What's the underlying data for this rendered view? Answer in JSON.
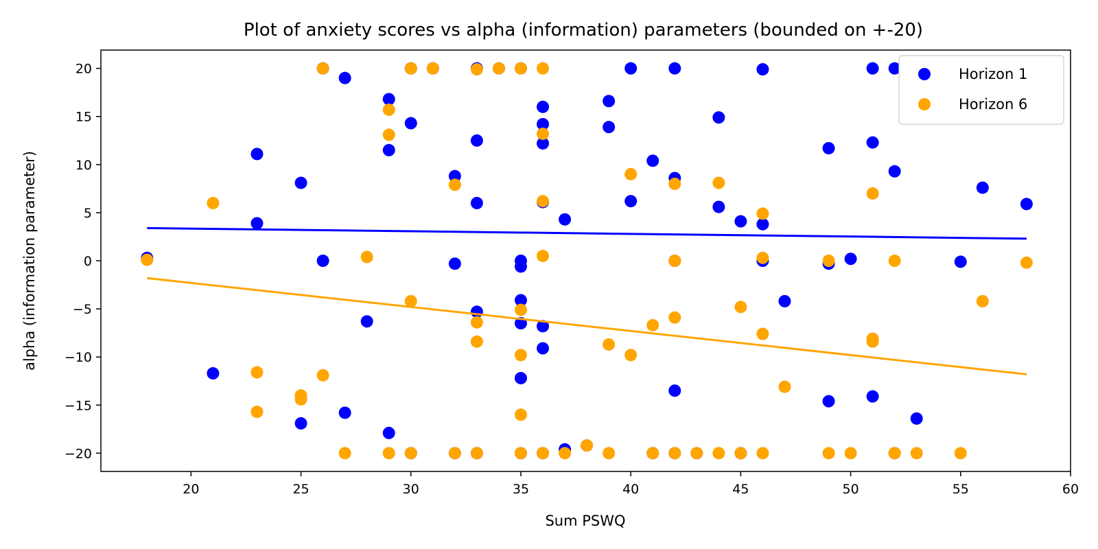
{
  "chart_data": {
    "type": "scatter",
    "title": "Plot of anxiety scores vs alpha (information) parameters (bounded on +-20)",
    "xlabel": "Sum PSWQ",
    "ylabel": "alpha (information parameter)",
    "xlim": [
      15.9,
      60
    ],
    "ylim": [
      -21.9,
      21.9
    ],
    "xticks": [
      20,
      25,
      30,
      35,
      40,
      45,
      50,
      55,
      60
    ],
    "yticks": [
      -20,
      -15,
      -10,
      -5,
      0,
      5,
      10,
      15,
      20
    ],
    "grid": false,
    "legend_position": "top-right",
    "series": [
      {
        "name": "Horizon 1",
        "color": "#0000ff",
        "points": [
          [
            18,
            0.3
          ],
          [
            21,
            -11.7
          ],
          [
            23,
            11.1
          ],
          [
            23,
            3.9
          ],
          [
            25,
            8.1
          ],
          [
            25,
            -16.9
          ],
          [
            26,
            20
          ],
          [
            26,
            0
          ],
          [
            27,
            19
          ],
          [
            27,
            -15.8
          ],
          [
            28,
            -6.3
          ],
          [
            29,
            16.8
          ],
          [
            29,
            11.5
          ],
          [
            29,
            -17.9
          ],
          [
            30,
            14.3
          ],
          [
            30,
            20
          ],
          [
            30,
            -20
          ],
          [
            31,
            20
          ],
          [
            32,
            8.8
          ],
          [
            32,
            -0.3
          ],
          [
            32,
            -20
          ],
          [
            33,
            20
          ],
          [
            33,
            12.5
          ],
          [
            33,
            6
          ],
          [
            33,
            -5.3
          ],
          [
            33,
            -20
          ],
          [
            34,
            20
          ],
          [
            35,
            20
          ],
          [
            35,
            0
          ],
          [
            35,
            -0.6
          ],
          [
            35,
            -4.1
          ],
          [
            35,
            -6.5
          ],
          [
            35,
            -12.2
          ],
          [
            35,
            -20
          ],
          [
            36,
            16
          ],
          [
            36,
            14.2
          ],
          [
            36,
            12.2
          ],
          [
            36,
            6.1
          ],
          [
            36,
            -6.8
          ],
          [
            36,
            -9.1
          ],
          [
            36,
            -20
          ],
          [
            37,
            4.3
          ],
          [
            37,
            -19.6
          ],
          [
            38,
            -19.2
          ],
          [
            39,
            16.6
          ],
          [
            39,
            13.9
          ],
          [
            40,
            20
          ],
          [
            40,
            6.2
          ],
          [
            41,
            10.4
          ],
          [
            41,
            -20
          ],
          [
            42,
            20
          ],
          [
            42,
            8.6
          ],
          [
            42,
            0
          ],
          [
            42,
            -13.5
          ],
          [
            42,
            -20
          ],
          [
            43,
            -20
          ],
          [
            44,
            14.9
          ],
          [
            44,
            5.6
          ],
          [
            45,
            4.1
          ],
          [
            45,
            -20
          ],
          [
            46,
            19.9
          ],
          [
            46,
            3.8
          ],
          [
            46,
            0
          ],
          [
            47,
            -4.2
          ],
          [
            49,
            11.7
          ],
          [
            49,
            -0.3
          ],
          [
            49,
            -14.6
          ],
          [
            50,
            0.2
          ],
          [
            51,
            20
          ],
          [
            51,
            12.3
          ],
          [
            51,
            -14.1
          ],
          [
            52,
            20
          ],
          [
            52,
            9.3
          ],
          [
            52,
            -20
          ],
          [
            53,
            -16.4
          ],
          [
            55,
            -0.1
          ],
          [
            56,
            7.6
          ],
          [
            58,
            5.9
          ]
        ],
        "trendline": {
          "x": [
            18,
            58
          ],
          "y": [
            3.4,
            2.3
          ]
        }
      },
      {
        "name": "Horizon 6",
        "color": "#ffa500",
        "points": [
          [
            18,
            0.1
          ],
          [
            21,
            6
          ],
          [
            23,
            -11.6
          ],
          [
            23,
            -15.7
          ],
          [
            25,
            -14.0
          ],
          [
            25,
            -14.4
          ],
          [
            26,
            20
          ],
          [
            26,
            -11.9
          ],
          [
            27,
            -20
          ],
          [
            28,
            0.4
          ],
          [
            29,
            15.7
          ],
          [
            29,
            13.1
          ],
          [
            29,
            -20
          ],
          [
            30,
            20
          ],
          [
            30,
            -4.2
          ],
          [
            30,
            -20
          ],
          [
            31,
            20
          ],
          [
            32,
            7.9
          ],
          [
            32,
            -20
          ],
          [
            33,
            19.9
          ],
          [
            33,
            -6.4
          ],
          [
            33,
            -8.4
          ],
          [
            33,
            -20
          ],
          [
            34,
            20
          ],
          [
            35,
            20
          ],
          [
            35,
            -5.1
          ],
          [
            35,
            -9.8
          ],
          [
            35,
            -16
          ],
          [
            35,
            -20
          ],
          [
            36,
            20
          ],
          [
            36,
            13.2
          ],
          [
            36,
            6.2
          ],
          [
            36,
            0.5
          ],
          [
            36,
            -20
          ],
          [
            37,
            -20
          ],
          [
            38,
            -19.2
          ],
          [
            39,
            -8.7
          ],
          [
            39,
            -20
          ],
          [
            40,
            9
          ],
          [
            40,
            -9.8
          ],
          [
            41,
            -6.7
          ],
          [
            41,
            -20
          ],
          [
            42,
            8
          ],
          [
            42,
            0
          ],
          [
            42,
            -5.9
          ],
          [
            42,
            -20
          ],
          [
            43,
            -20
          ],
          [
            44,
            8.1
          ],
          [
            44,
            -20
          ],
          [
            45,
            -4.8
          ],
          [
            45,
            -20
          ],
          [
            46,
            4.9
          ],
          [
            46,
            0.3
          ],
          [
            46,
            -7.6
          ],
          [
            46,
            -20
          ],
          [
            47,
            -13.1
          ],
          [
            49,
            0
          ],
          [
            49,
            -20
          ],
          [
            50,
            -20
          ],
          [
            51,
            7
          ],
          [
            51,
            -8.1
          ],
          [
            51,
            -8.4
          ],
          [
            52,
            0
          ],
          [
            52,
            -20
          ],
          [
            53,
            -20
          ],
          [
            55,
            -20
          ],
          [
            56,
            -4.2
          ],
          [
            58,
            -0.2
          ]
        ],
        "trendline": {
          "x": [
            18,
            58
          ],
          "y": [
            -1.8,
            -11.8
          ]
        }
      }
    ]
  }
}
